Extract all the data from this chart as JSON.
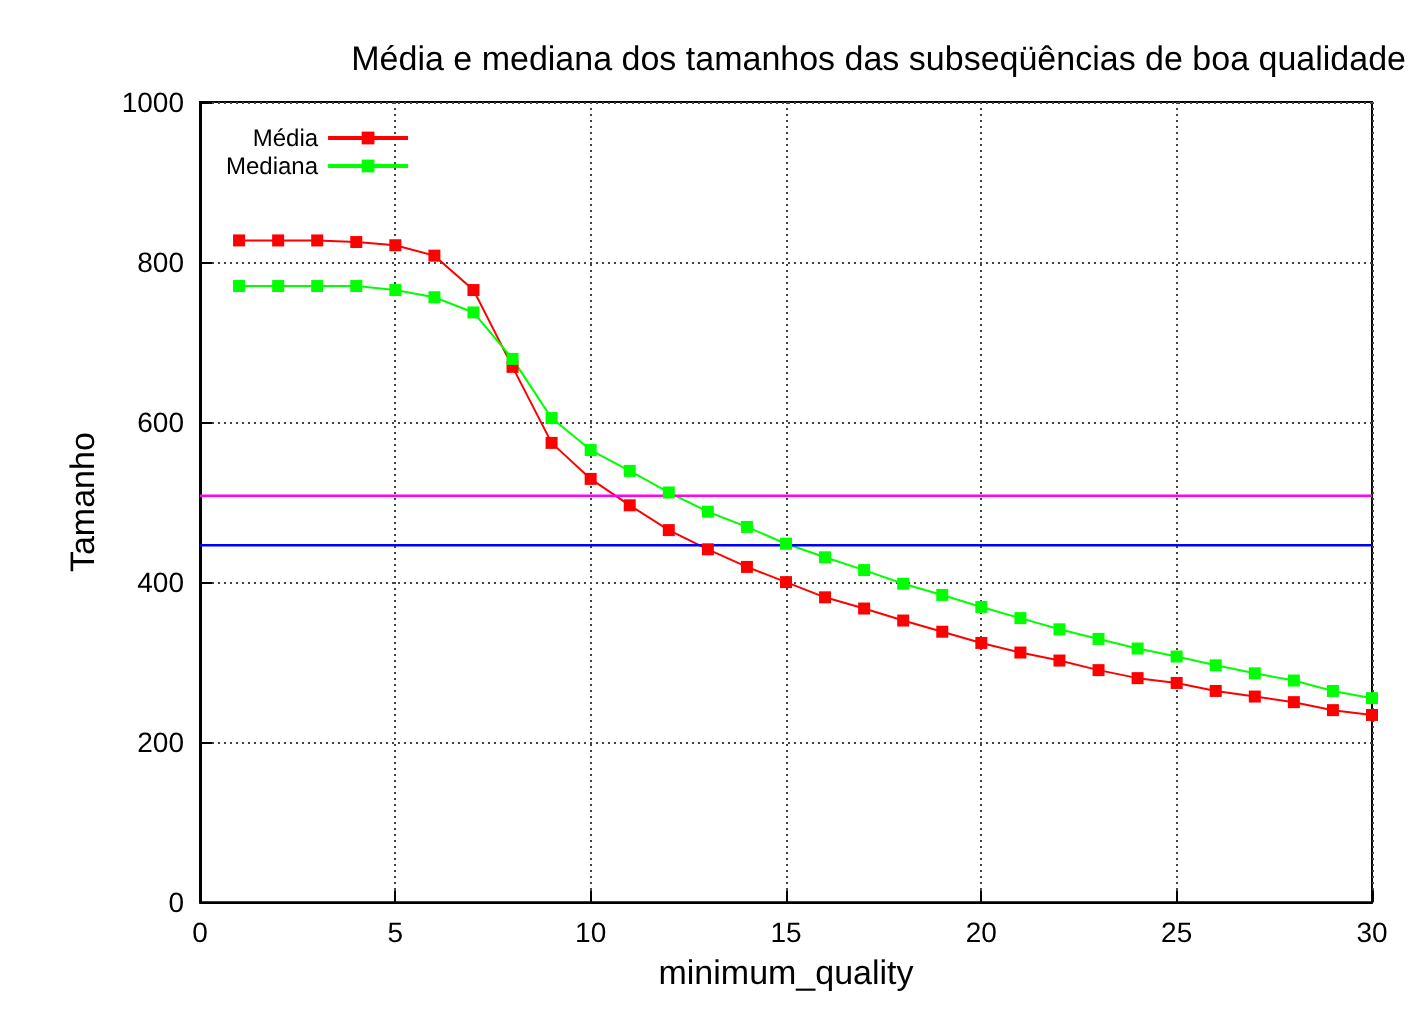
{
  "chart_data": {
    "type": "line",
    "title": "Média e mediana dos tamanhos das subseqüências de boa qualidade",
    "xlabel": "minimum_quality",
    "ylabel": "Tamanho",
    "x": [
      1,
      2,
      3,
      4,
      5,
      6,
      7,
      8,
      9,
      10,
      11,
      12,
      13,
      14,
      15,
      16,
      17,
      18,
      19,
      20,
      21,
      22,
      23,
      24,
      25,
      26,
      27,
      28,
      29,
      30
    ],
    "series": [
      {
        "name": "Média",
        "color": "#ff0000",
        "values": [
          827,
          827,
          827,
          825,
          821,
          808,
          765,
          669,
          574,
          529,
          496,
          465,
          441,
          419,
          400,
          381,
          367,
          352,
          338,
          324,
          312,
          302,
          290,
          280,
          274,
          264,
          257,
          250,
          240,
          234
        ]
      },
      {
        "name": "Mediana",
        "color": "#00ff00",
        "values": [
          770,
          770,
          770,
          770,
          765,
          756,
          737,
          679,
          605,
          565,
          539,
          512,
          488,
          469,
          448,
          431,
          415,
          398,
          384,
          369,
          355,
          341,
          329,
          317,
          307,
          296,
          286,
          277,
          264,
          255
        ]
      }
    ],
    "ref_lines": [
      {
        "axis": "y",
        "value": 446,
        "color": "#0000ff"
      },
      {
        "axis": "y",
        "value": 508,
        "color": "#ff00ff"
      }
    ],
    "xlim": [
      0,
      30
    ],
    "xticks": [
      0,
      5,
      10,
      15,
      20,
      25,
      30
    ],
    "ylim": [
      0,
      1000
    ],
    "yticks": [
      0,
      200,
      400,
      600,
      800,
      1000
    ],
    "grid": true,
    "legend": "top left",
    "marker": "square",
    "line_style": "solid"
  }
}
